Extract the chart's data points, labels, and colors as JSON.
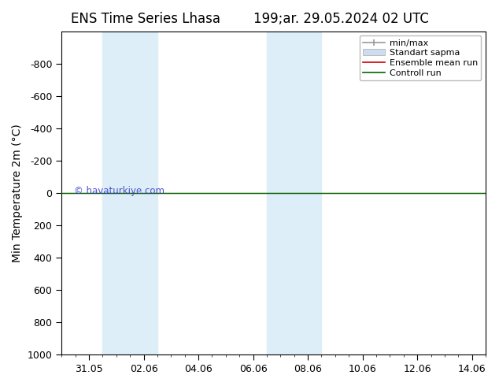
{
  "title_left": "ENS Time Series Lhasa",
  "title_right": "199;ar. 29.05.2024 02 UTC",
  "ylabel": "Min Temperature 2m (°C)",
  "ylim_top": -1000,
  "ylim_bottom": 1000,
  "yticks": [
    -800,
    -600,
    -400,
    -200,
    0,
    200,
    400,
    600,
    800,
    1000
  ],
  "xtick_labels": [
    "31.05",
    "02.06",
    "04.06",
    "06.06",
    "08.06",
    "10.06",
    "12.06",
    "14.06"
  ],
  "xtick_positions": [
    1,
    3,
    5,
    7,
    9,
    11,
    13,
    15
  ],
  "x_min": 0,
  "x_max": 15.5,
  "shaded_bands": [
    {
      "x_start": 1.5,
      "x_end": 3.5
    },
    {
      "x_start": 7.5,
      "x_end": 9.5
    }
  ],
  "control_run_y": 0,
  "ensemble_mean_y": 0,
  "legend_entries": [
    "min/max",
    "Standart sapma",
    "Ensemble mean run",
    "Controll run"
  ],
  "legend_colors_line": [
    "#999999",
    "#cccccc",
    "#cc0000",
    "#006600"
  ],
  "legend_shade_color": "#ccddf0",
  "watermark": "© havaturkiye.com",
  "watermark_color": "#3333cc",
  "background_color": "#ffffff",
  "shade_color": "#ddeef8",
  "title_fontsize": 12,
  "axis_label_fontsize": 10,
  "tick_fontsize": 9,
  "legend_fontsize": 8
}
